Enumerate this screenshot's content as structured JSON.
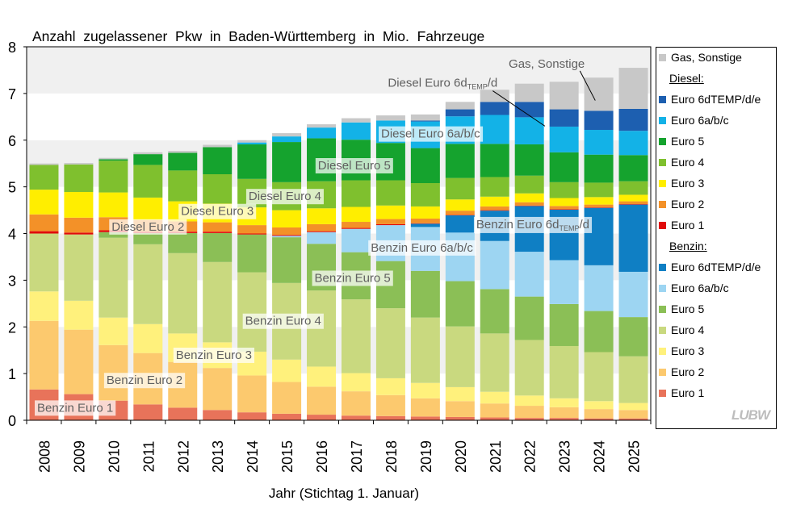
{
  "chart_data": {
    "type": "bar",
    "stacked": true,
    "title": "Anzahl  zugelassener  Pkw  in  Baden-Württemberg  in  Mio.  Fahrzeuge",
    "xlabel": "Jahr (Stichtag 1. Januar)",
    "ylabel": "",
    "ylim": [
      0,
      8
    ],
    "yticks": [
      "0",
      "1",
      "2",
      "3",
      "4",
      "5",
      "6",
      "7",
      "8"
    ],
    "categories": [
      "2008",
      "2009",
      "2010",
      "2011",
      "2012",
      "2013",
      "2014",
      "2015",
      "2016",
      "2017",
      "2018",
      "2019",
      "2020",
      "2021",
      "2022",
      "2023",
      "2024",
      "2025"
    ],
    "series": [
      {
        "name": "Benzin Euro 1",
        "color": "#e8735a",
        "values": [
          0.66,
          0.56,
          0.42,
          0.34,
          0.27,
          0.22,
          0.17,
          0.14,
          0.12,
          0.1,
          0.09,
          0.08,
          0.07,
          0.06,
          0.05,
          0.05,
          0.04,
          0.04
        ]
      },
      {
        "name": "Benzin Euro 2",
        "color": "#fcc96e",
        "values": [
          1.47,
          1.38,
          1.19,
          1.1,
          0.98,
          0.9,
          0.79,
          0.68,
          0.6,
          0.52,
          0.45,
          0.39,
          0.34,
          0.3,
          0.26,
          0.23,
          0.2,
          0.18
        ]
      },
      {
        "name": "Benzin Euro 3",
        "color": "#fff17c",
        "values": [
          0.63,
          0.62,
          0.59,
          0.62,
          0.61,
          0.55,
          0.51,
          0.48,
          0.43,
          0.39,
          0.36,
          0.33,
          0.3,
          0.25,
          0.22,
          0.19,
          0.17,
          0.15
        ]
      },
      {
        "name": "Benzin Euro 4",
        "color": "#c9d97f",
        "values": [
          1.24,
          1.42,
          1.71,
          1.71,
          1.72,
          1.72,
          1.7,
          1.64,
          1.63,
          1.58,
          1.5,
          1.4,
          1.3,
          1.25,
          1.19,
          1.12,
          1.05,
          1.0
        ]
      },
      {
        "name": "Benzin Euro 5",
        "color": "#8bbf56",
        "values": [
          0,
          0,
          0.12,
          0.24,
          0.43,
          0.62,
          0.81,
          0.98,
          1.0,
          1.01,
          1.01,
          1.0,
          0.97,
          0.95,
          0.93,
          0.9,
          0.88,
          0.84
        ]
      },
      {
        "name": "Benzin Euro 6a/b/c",
        "color": "#9dd5f2",
        "values": [
          0,
          0,
          0,
          0,
          0,
          0,
          0,
          0.03,
          0.25,
          0.5,
          0.77,
          0.94,
          1.04,
          1.03,
          0.96,
          0.94,
          0.98,
          0.97
        ]
      },
      {
        "name": "Benzin Euro 6dTEMP/d/e",
        "color": "#0f7fc4",
        "values": [
          0,
          0,
          0,
          0,
          0,
          0,
          0,
          0,
          0,
          0,
          0,
          0.07,
          0.37,
          0.65,
          0.98,
          1.08,
          1.23,
          1.44
        ]
      },
      {
        "name": "Diesel Euro 1",
        "color": "#e00b0b",
        "values": [
          0.05,
          0.04,
          0.04,
          0.03,
          0.03,
          0.03,
          0.02,
          0.02,
          0.02,
          0.02,
          0.02,
          0.01,
          0.01,
          0.01,
          0.01,
          0.01,
          0.01,
          0.01
        ]
      },
      {
        "name": "Diesel Euro 2",
        "color": "#f39128",
        "values": [
          0.36,
          0.32,
          0.28,
          0.25,
          0.22,
          0.2,
          0.18,
          0.16,
          0.15,
          0.13,
          0.11,
          0.1,
          0.09,
          0.08,
          0.07,
          0.07,
          0.06,
          0.06
        ]
      },
      {
        "name": "Diesel Euro 3",
        "color": "#ffee00",
        "values": [
          0.53,
          0.55,
          0.53,
          0.48,
          0.43,
          0.4,
          0.38,
          0.37,
          0.34,
          0.32,
          0.29,
          0.26,
          0.24,
          0.21,
          0.19,
          0.17,
          0.16,
          0.14
        ]
      },
      {
        "name": "Diesel Euro 4",
        "color": "#7fc02e",
        "values": [
          0.53,
          0.59,
          0.68,
          0.7,
          0.66,
          0.63,
          0.61,
          0.6,
          0.58,
          0.57,
          0.54,
          0.5,
          0.46,
          0.42,
          0.38,
          0.34,
          0.31,
          0.29
        ]
      },
      {
        "name": "Diesel Euro 5",
        "color": "#15a32e",
        "values": [
          0,
          0,
          0.03,
          0.23,
          0.38,
          0.58,
          0.74,
          0.86,
          0.92,
          0.87,
          0.8,
          0.75,
          0.73,
          0.71,
          0.67,
          0.64,
          0.6,
          0.56
        ]
      },
      {
        "name": "Diesel Euro 6a/b/c",
        "color": "#13b2e7",
        "values": [
          0,
          0,
          0,
          0,
          0,
          0,
          0.04,
          0.12,
          0.23,
          0.37,
          0.48,
          0.57,
          0.59,
          0.62,
          0.58,
          0.55,
          0.53,
          0.52
        ]
      },
      {
        "name": "Diesel Euro 6dTEMP/d/e",
        "color": "#1d5fb0",
        "values": [
          0,
          0,
          0,
          0,
          0,
          0,
          0,
          0,
          0,
          0,
          0,
          0.02,
          0.15,
          0.28,
          0.33,
          0.37,
          0.41,
          0.47
        ]
      },
      {
        "name": "Gas, Sonstige",
        "color": "#c8c8c8",
        "values": [
          0.03,
          0.03,
          0.03,
          0.04,
          0.04,
          0.05,
          0.05,
          0.07,
          0.07,
          0.09,
          0.11,
          0.13,
          0.16,
          0.26,
          0.39,
          0.59,
          0.71,
          0.88
        ]
      }
    ],
    "annotations": [
      {
        "series": "Benzin Euro 1",
        "text": "Benzin Euro 1",
        "year_index": 0.9,
        "y": 0.27
      },
      {
        "series": "Benzin Euro 2",
        "text": "Benzin Euro 2",
        "year_index": 2.9,
        "y": 0.86
      },
      {
        "series": "Benzin Euro 3",
        "text": "Benzin Euro 3",
        "year_index": 4.9,
        "y": 1.4
      },
      {
        "series": "Benzin Euro 4",
        "text": "Benzin Euro 4",
        "year_index": 6.9,
        "y": 2.13
      },
      {
        "series": "Benzin Euro 5",
        "text": "Benzin Euro 5",
        "year_index": 8.9,
        "y": 3.05
      },
      {
        "series": "Benzin Euro 6a/b/c",
        "text": "Benzin Euro 6a/b/c",
        "year_index": 10.9,
        "y": 3.7
      },
      {
        "series": "Benzin Euro 6dTEMP/d/e",
        "text": "Benzin Euro 6d",
        "sub": "TEMP",
        "tail": "/d",
        "year_index": 14.1,
        "y": 4.2
      },
      {
        "series": "Diesel Euro 2",
        "text": "Diesel Euro 2",
        "year_index": 3.0,
        "y": 4.15
      },
      {
        "series": "Diesel Euro 3",
        "text": "Diesel Euro 3",
        "year_index": 5.0,
        "y": 4.48
      },
      {
        "series": "Diesel Euro 4",
        "text": "Diesel Euro 4",
        "year_index": 6.95,
        "y": 4.8
      },
      {
        "series": "Diesel Euro 5",
        "text": "Diesel Euro 5",
        "year_index": 8.95,
        "y": 5.46
      },
      {
        "series": "Diesel Euro 6a/b/c",
        "text": "Diesel Euro 6a/b/c",
        "year_index": 11.15,
        "y": 6.14
      },
      {
        "series": "Diesel Euro 6dTEMP/d/e",
        "text": "Diesel Euro 6d",
        "sub": "TEMP",
        "tail": "/d",
        "year_index": 11.5,
        "y": 7.23,
        "leader_to_year": 14.45,
        "leader_y": 6.3,
        "plain": true
      },
      {
        "series": "Gas, Sonstige",
        "text": "Gas, Sonstige",
        "year_index": 14.5,
        "y": 7.64,
        "leader_to_year": 15.9,
        "leader_y": 6.85,
        "plain": true
      }
    ]
  },
  "legend": {
    "gas": {
      "label": "Gas, Sonstige",
      "color": "#c8c8c8"
    },
    "diesel_heading": "Diesel:",
    "diesel": [
      {
        "label": "Euro 6dTEMP/d/e",
        "color": "#1d5fb0"
      },
      {
        "label": "Euro 6a/b/c",
        "color": "#13b2e7"
      },
      {
        "label": "Euro 5",
        "color": "#15a32e"
      },
      {
        "label": "Euro 4",
        "color": "#7fc02e"
      },
      {
        "label": "Euro 3",
        "color": "#ffee00"
      },
      {
        "label": "Euro 2",
        "color": "#f39128"
      },
      {
        "label": "Euro 1",
        "color": "#e00b0b"
      }
    ],
    "benzin_heading": "Benzin:",
    "benzin": [
      {
        "label": "Euro 6dTEMP/d/e",
        "color": "#0f7fc4"
      },
      {
        "label": "Euro 6a/b/c",
        "color": "#9dd5f2"
      },
      {
        "label": "Euro 5",
        "color": "#8bbf56"
      },
      {
        "label": "Euro 4",
        "color": "#c9d97f"
      },
      {
        "label": "Euro 3",
        "color": "#fff17c"
      },
      {
        "label": "Euro 2",
        "color": "#fcc96e"
      },
      {
        "label": "Euro 1",
        "color": "#e8735a"
      }
    ],
    "logo": "LUBW"
  }
}
